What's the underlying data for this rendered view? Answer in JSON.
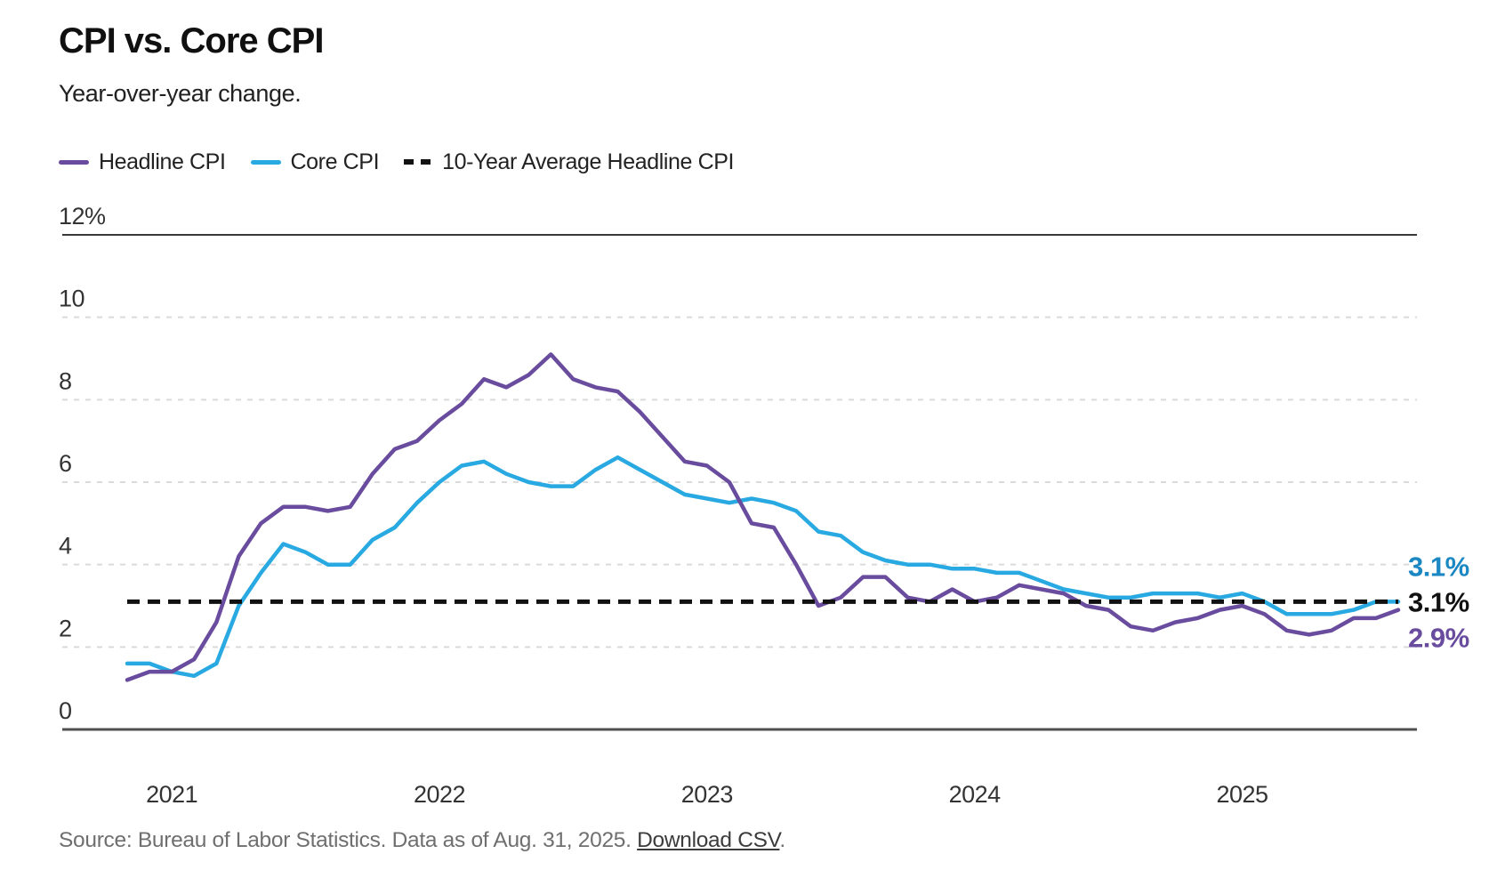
{
  "page": {
    "title": "CPI vs. Core CPI",
    "subtitle": "Year-over-year change."
  },
  "legend": [
    {
      "label": "Headline CPI",
      "color": "#6a4c9f",
      "style": "solid"
    },
    {
      "label": "Core CPI",
      "color": "#29a9e1",
      "style": "solid"
    },
    {
      "label": "10-Year Average Headline CPI",
      "color": "#111111",
      "style": "dashed"
    }
  ],
  "source": {
    "text": "Source: Bureau of Labor Statistics. Data as of Aug. 31, 2025. ",
    "link": "Download CSV",
    "after_link": "."
  },
  "chart_data": {
    "type": "line",
    "title": "CPI vs. Core CPI",
    "subtitle": "Year-over-year change.",
    "ylim": [
      0,
      12
    ],
    "y_ticks": [
      {
        "value": 12,
        "label": "12%"
      },
      {
        "value": 10,
        "label": "10"
      },
      {
        "value": 8,
        "label": "8"
      },
      {
        "value": 6,
        "label": "6"
      },
      {
        "value": 4,
        "label": "4"
      },
      {
        "value": 2,
        "label": "2"
      },
      {
        "value": 0,
        "label": "0"
      }
    ],
    "grid": "horizontal-dashed",
    "legend_position": "top-left",
    "x_unit": "month",
    "x_months": [
      "2020-11",
      "2020-12",
      "2021-01",
      "2021-02",
      "2021-03",
      "2021-04",
      "2021-05",
      "2021-06",
      "2021-07",
      "2021-08",
      "2021-09",
      "2021-10",
      "2021-11",
      "2021-12",
      "2022-01",
      "2022-02",
      "2022-03",
      "2022-04",
      "2022-05",
      "2022-06",
      "2022-07",
      "2022-08",
      "2022-09",
      "2022-10",
      "2022-11",
      "2022-12",
      "2023-01",
      "2023-02",
      "2023-03",
      "2023-04",
      "2023-05",
      "2023-06",
      "2023-07",
      "2023-08",
      "2023-09",
      "2023-10",
      "2023-11",
      "2023-12",
      "2024-01",
      "2024-02",
      "2024-03",
      "2024-04",
      "2024-05",
      "2024-06",
      "2024-07",
      "2024-08",
      "2024-09",
      "2024-10",
      "2024-11",
      "2024-12",
      "2025-01",
      "2025-02",
      "2025-03",
      "2025-04",
      "2025-05",
      "2025-06",
      "2025-07",
      "2025-08"
    ],
    "x_ticks": [
      {
        "label": "2021",
        "month_index": 2
      },
      {
        "label": "2022",
        "month_index": 14
      },
      {
        "label": "2023",
        "month_index": 26
      },
      {
        "label": "2024",
        "month_index": 38
      },
      {
        "label": "2025",
        "month_index": 50
      }
    ],
    "series": [
      {
        "name": "Headline CPI",
        "color": "#6a4c9f",
        "values": [
          1.2,
          1.4,
          1.4,
          1.7,
          2.6,
          4.2,
          5.0,
          5.4,
          5.4,
          5.3,
          5.4,
          6.2,
          6.8,
          7.0,
          7.5,
          7.9,
          8.5,
          8.3,
          8.6,
          9.1,
          8.5,
          8.3,
          8.2,
          7.7,
          7.1,
          6.5,
          6.4,
          6.0,
          5.0,
          4.9,
          4.0,
          3.0,
          3.2,
          3.7,
          3.7,
          3.2,
          3.1,
          3.4,
          3.1,
          3.2,
          3.5,
          3.4,
          3.3,
          3.0,
          2.9,
          2.5,
          2.4,
          2.6,
          2.7,
          2.9,
          3.0,
          2.8,
          2.4,
          2.3,
          2.4,
          2.7,
          2.7,
          2.9
        ]
      },
      {
        "name": "Core CPI",
        "color": "#29a9e1",
        "values": [
          1.6,
          1.6,
          1.4,
          1.3,
          1.6,
          3.0,
          3.8,
          4.5,
          4.3,
          4.0,
          4.0,
          4.6,
          4.9,
          5.5,
          6.0,
          6.4,
          6.5,
          6.2,
          6.0,
          5.9,
          5.9,
          6.3,
          6.6,
          6.3,
          6.0,
          5.7,
          5.6,
          5.5,
          5.6,
          5.5,
          5.3,
          4.8,
          4.7,
          4.3,
          4.1,
          4.0,
          4.0,
          3.9,
          3.9,
          3.8,
          3.8,
          3.6,
          3.4,
          3.3,
          3.2,
          3.2,
          3.3,
          3.3,
          3.3,
          3.2,
          3.3,
          3.1,
          2.8,
          2.8,
          2.8,
          2.9,
          3.1,
          3.1
        ]
      }
    ],
    "average_line": {
      "name": "10-Year Average Headline CPI",
      "value": 3.1,
      "color": "#111111",
      "style": "dashed"
    },
    "end_labels": [
      {
        "text": "3.1%",
        "series": "Core CPI",
        "color": "#1b87c3",
        "row": -1
      },
      {
        "text": "3.1%",
        "series": "10-Year Average Headline CPI",
        "color": "#111111",
        "row": 0
      },
      {
        "text": "2.9%",
        "series": "Headline CPI",
        "color": "#6a4c9f",
        "row": 1
      }
    ]
  }
}
